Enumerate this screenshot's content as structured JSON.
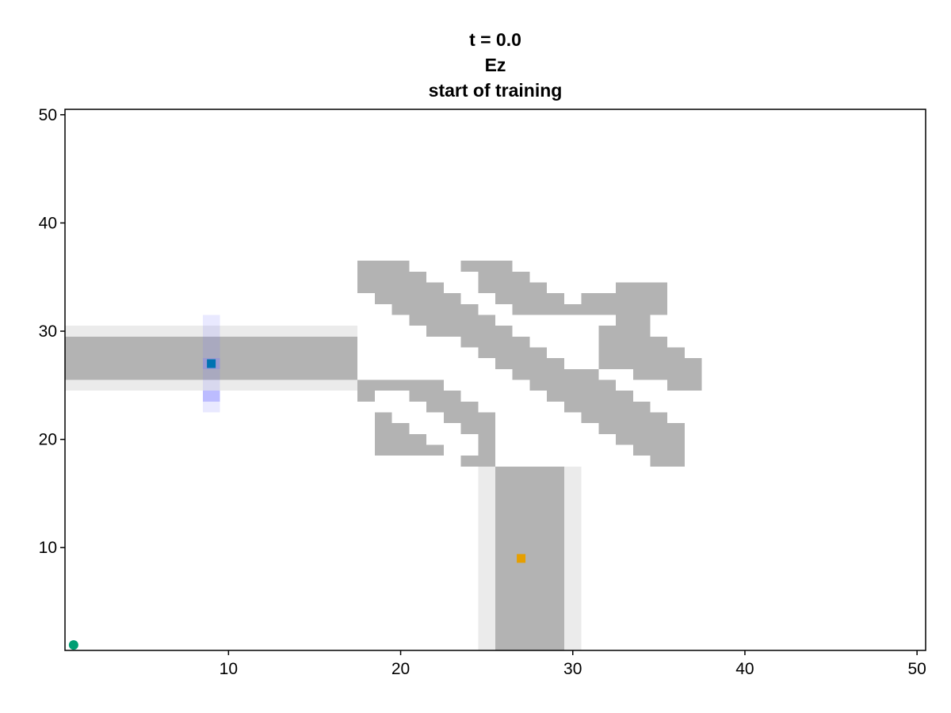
{
  "chart_data": {
    "type": "heatmap",
    "title_lines": [
      "t = 0.0",
      "Ez",
      "start of training"
    ],
    "xlabel": "",
    "ylabel": "",
    "xlim": [
      0.5,
      50.5
    ],
    "ylim": [
      0.5,
      50.5
    ],
    "xticks": [
      10,
      20,
      30,
      40,
      50
    ],
    "yticks": [
      10,
      20,
      30,
      40,
      50
    ],
    "grid": false,
    "colors": {
      "device": "#b3b3b3",
      "cladding": "#ebebeb",
      "field": "#7878ff",
      "source_marker": "#0072b2",
      "monitor_marker": "#e69f00",
      "origin_marker": "#009e73"
    },
    "layers": {
      "cladding_rects": [
        {
          "x": [
            1,
            17
          ],
          "y": [
            25,
            30
          ]
        },
        {
          "x": [
            25,
            30
          ],
          "y": [
            1,
            17
          ]
        }
      ],
      "device_rects": [
        {
          "x": [
            1,
            17
          ],
          "y": [
            26,
            29
          ]
        },
        {
          "x": [
            26,
            29
          ],
          "y": [
            1,
            17
          ]
        }
      ],
      "field_rects": [
        {
          "x": [
            9,
            9
          ],
          "y": [
            23,
            31
          ],
          "opacity": 0.16
        },
        {
          "x": [
            9,
            9
          ],
          "y": [
            24,
            24
          ],
          "opacity": 0.4
        },
        {
          "x": [
            9,
            9
          ],
          "y": [
            27,
            27
          ],
          "opacity": 0.3
        }
      ],
      "design_rows": [
        {
          "y": 36,
          "x": [
            [
              18,
              20
            ],
            [
              24,
              26
            ]
          ]
        },
        {
          "y": 35,
          "x": [
            [
              18,
              21
            ],
            [
              25,
              27
            ]
          ]
        },
        {
          "y": 34,
          "x": [
            [
              18,
              22
            ],
            [
              25,
              28
            ],
            [
              33,
              35
            ]
          ]
        },
        {
          "y": 33,
          "x": [
            [
              19,
              23
            ],
            [
              26,
              29
            ],
            [
              31,
              35
            ]
          ]
        },
        {
          "y": 32,
          "x": [
            [
              20,
              24
            ],
            [
              27,
              32
            ],
            [
              33,
              35
            ]
          ]
        },
        {
          "y": 31,
          "x": [
            [
              21,
              25
            ],
            [
              33,
              34
            ]
          ]
        },
        {
          "y": 30,
          "x": [
            [
              22,
              26
            ],
            [
              32,
              34
            ]
          ]
        },
        {
          "y": 29,
          "x": [
            [
              24,
              27
            ],
            [
              32,
              35
            ]
          ]
        },
        {
          "y": 28,
          "x": [
            [
              25,
              28
            ],
            [
              32,
              36
            ]
          ]
        },
        {
          "y": 27,
          "x": [
            [
              26,
              29
            ],
            [
              32,
              37
            ]
          ]
        },
        {
          "y": 26,
          "x": [
            [
              27,
              31
            ],
            [
              34,
              37
            ]
          ]
        },
        {
          "y": 25,
          "x": [
            [
              18,
              22
            ],
            [
              28,
              32
            ],
            [
              36,
              37
            ]
          ]
        },
        {
          "y": 24,
          "x": [
            [
              18,
              18
            ],
            [
              21,
              23
            ],
            [
              29,
              33
            ]
          ]
        },
        {
          "y": 23,
          "x": [
            [
              22,
              24
            ],
            [
              30,
              34
            ]
          ]
        },
        {
          "y": 22,
          "x": [
            [
              19,
              19
            ],
            [
              23,
              25
            ],
            [
              31,
              35
            ]
          ]
        },
        {
          "y": 21,
          "x": [
            [
              19,
              20
            ],
            [
              24,
              25
            ],
            [
              32,
              36
            ]
          ]
        },
        {
          "y": 20,
          "x": [
            [
              19,
              21
            ],
            [
              25,
              25
            ],
            [
              33,
              36
            ]
          ]
        },
        {
          "y": 19,
          "x": [
            [
              19,
              22
            ],
            [
              25,
              25
            ],
            [
              34,
              36
            ]
          ]
        },
        {
          "y": 18,
          "x": [
            [
              24,
              25
            ],
            [
              35,
              36
            ]
          ]
        }
      ]
    },
    "markers": [
      {
        "name": "source",
        "shape": "square",
        "x": 9,
        "y": 27
      },
      {
        "name": "monitor",
        "shape": "square",
        "x": 27,
        "y": 9
      },
      {
        "name": "origin",
        "shape": "circle",
        "x": 1,
        "y": 1
      }
    ]
  }
}
